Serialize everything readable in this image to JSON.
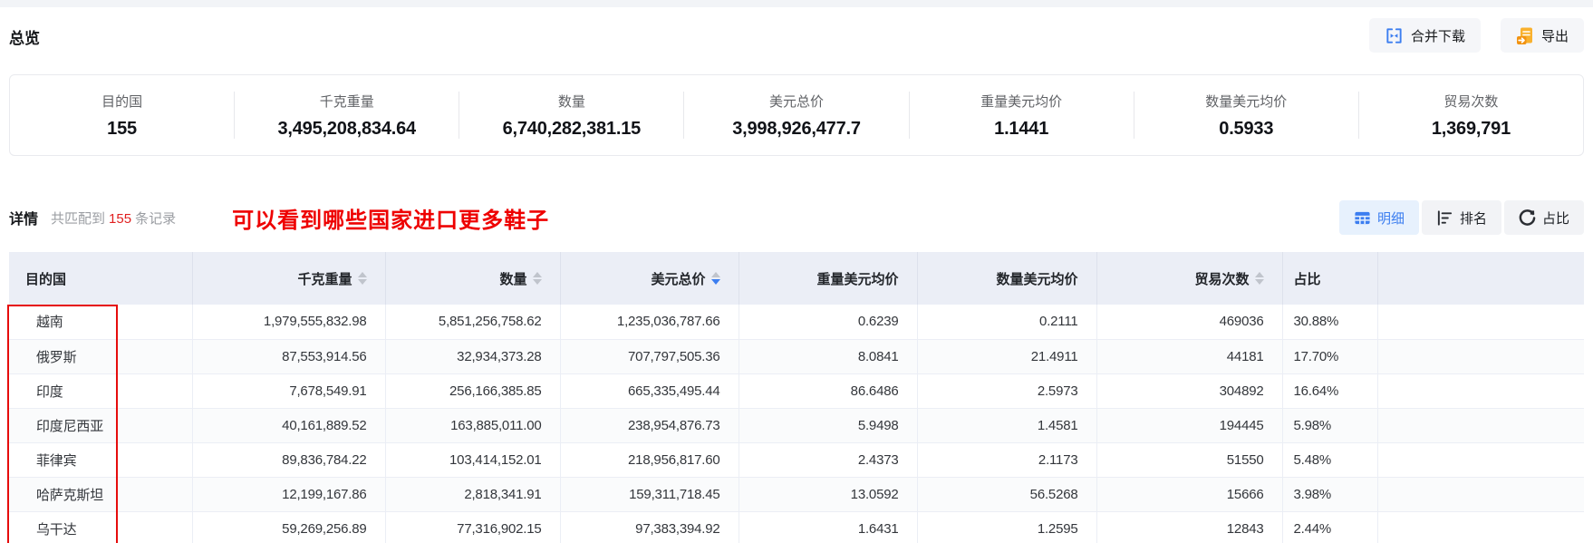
{
  "colors": {
    "accent_blue": "#3c7ef0",
    "active_tab_bg": "#e7f1fd",
    "table_header_bg": "#ebeef6",
    "annotation_red": "#ee0000",
    "count_red": "#e01f1f",
    "export_orange": "#f9b12e",
    "export_orange_dark": "#f29311"
  },
  "overview": {
    "title": "总览",
    "merge_download_label": "合并下载",
    "export_label": "导出",
    "stats": [
      {
        "label": "目的国",
        "value": "155"
      },
      {
        "label": "千克重量",
        "value": "3,495,208,834.64"
      },
      {
        "label": "数量",
        "value": "6,740,282,381.15"
      },
      {
        "label": "美元总价",
        "value": "3,998,926,477.7"
      },
      {
        "label": "重量美元均价",
        "value": "1.1441"
      },
      {
        "label": "数量美元均价",
        "value": "0.5933"
      },
      {
        "label": "贸易次数",
        "value": "1,369,791"
      }
    ]
  },
  "details": {
    "title": "详情",
    "match_prefix": "共匹配到",
    "match_count": "155",
    "match_suffix": "条记录",
    "annotation": "可以看到哪些国家进口更多鞋子",
    "view_tabs": [
      {
        "label": "明细",
        "icon": "table-icon",
        "active": true
      },
      {
        "label": "排名",
        "icon": "ranking-icon",
        "active": false
      },
      {
        "label": "占比",
        "icon": "pie-icon",
        "active": false
      }
    ]
  },
  "table": {
    "columns": [
      {
        "label": "目的国",
        "sortable": false,
        "sort": null,
        "align": "left"
      },
      {
        "label": "千克重量",
        "sortable": true,
        "sort": null,
        "align": "right"
      },
      {
        "label": "数量",
        "sortable": true,
        "sort": null,
        "align": "right"
      },
      {
        "label": "美元总价",
        "sortable": true,
        "sort": "desc",
        "align": "right"
      },
      {
        "label": "重量美元均价",
        "sortable": false,
        "sort": null,
        "align": "right"
      },
      {
        "label": "数量美元均价",
        "sortable": false,
        "sort": null,
        "align": "right"
      },
      {
        "label": "贸易次数",
        "sortable": true,
        "sort": null,
        "align": "right"
      },
      {
        "label": "占比",
        "sortable": false,
        "sort": null,
        "align": "left"
      }
    ],
    "rows": [
      [
        "越南",
        "1,979,555,832.98",
        "5,851,256,758.62",
        "1,235,036,787.66",
        "0.6239",
        "0.2111",
        "469036",
        "30.88%"
      ],
      [
        "俄罗斯",
        "87,553,914.56",
        "32,934,373.28",
        "707,797,505.36",
        "8.0841",
        "21.4911",
        "44181",
        "17.70%"
      ],
      [
        "印度",
        "7,678,549.91",
        "256,166,385.85",
        "665,335,495.44",
        "86.6486",
        "2.5973",
        "304892",
        "16.64%"
      ],
      [
        "印度尼西亚",
        "40,161,889.52",
        "163,885,011.00",
        "238,954,876.73",
        "5.9498",
        "1.4581",
        "194445",
        "5.98%"
      ],
      [
        "菲律宾",
        "89,836,784.22",
        "103,414,152.01",
        "218,956,817.60",
        "2.4373",
        "2.1173",
        "51550",
        "5.48%"
      ],
      [
        "哈萨克斯坦",
        "12,199,167.86",
        "2,818,341.91",
        "159,311,718.45",
        "13.0592",
        "56.5268",
        "15666",
        "3.98%"
      ],
      [
        "乌干达",
        "59,269,256.89",
        "77,316,902.15",
        "97,383,394.92",
        "1.6431",
        "1.2595",
        "12843",
        "2.44%"
      ]
    ]
  }
}
